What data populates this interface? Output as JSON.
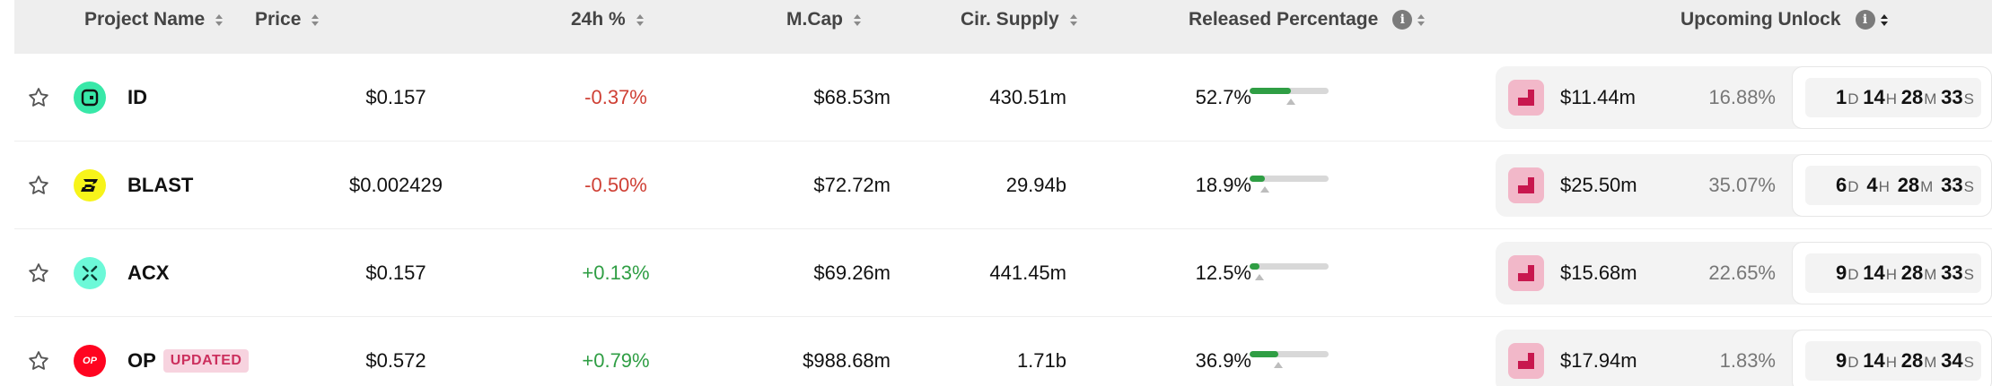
{
  "columns": [
    {
      "label": "Project Name",
      "sort_active": false,
      "info": false
    },
    {
      "label": "Price",
      "sort_active": false,
      "info": false
    },
    {
      "label": "24h %",
      "sort_active": false,
      "info": false
    },
    {
      "label": "M.Cap",
      "sort_active": false,
      "info": false
    },
    {
      "label": "Cir. Supply",
      "sort_active": false,
      "info": false
    },
    {
      "label": "Released Percentage",
      "sort_active": false,
      "info": true
    },
    {
      "label": "Upcoming Unlock",
      "sort_active": true,
      "info": true
    }
  ],
  "info_glyph": "i",
  "colors": {
    "negative": "#cf4035",
    "positive": "#2f9e44",
    "progress": "#2f9e44",
    "badge_text": "#cc2f5d",
    "badge_bg": "#f7d3df",
    "unlock_icon": "#c8174e"
  },
  "rows": [
    {
      "name": "ID",
      "badge": "",
      "logo_icon": "space-id-icon",
      "logo_bg": "#38e8a8",
      "price": "$0.157",
      "change": "-0.37%",
      "change_dir": "neg",
      "mcap": "$68.53m",
      "supply": "430.51m",
      "released_pct": "52.7%",
      "released_value": 0.527,
      "unlock_value": "$11.44m",
      "unlock_pct": "16.88%",
      "timer": [
        {
          "n": "1",
          "u": "D"
        },
        {
          "n": "14",
          "u": "H"
        },
        {
          "n": "28",
          "u": "M"
        },
        {
          "n": "33",
          "u": "S"
        }
      ]
    },
    {
      "name": "BLAST",
      "badge": "",
      "logo_icon": "blast-icon",
      "logo_bg": "#f7f41a",
      "price": "$0.002429",
      "change": "-0.50%",
      "change_dir": "neg",
      "mcap": "$72.72m",
      "supply": "29.94b",
      "released_pct": "18.9%",
      "released_value": 0.189,
      "unlock_value": "$25.50m",
      "unlock_pct": "35.07%",
      "timer": [
        {
          "n": "6",
          "u": "D"
        },
        {
          "n": "4",
          "u": "H"
        },
        {
          "n": "28",
          "u": "M"
        },
        {
          "n": "33",
          "u": "S"
        }
      ]
    },
    {
      "name": "ACX",
      "badge": "",
      "logo_icon": "across-icon",
      "logo_bg": "#6cf9d8",
      "price": "$0.157",
      "change": "+0.13%",
      "change_dir": "pos",
      "mcap": "$69.26m",
      "supply": "441.45m",
      "released_pct": "12.5%",
      "released_value": 0.125,
      "unlock_value": "$15.68m",
      "unlock_pct": "22.65%",
      "timer": [
        {
          "n": "9",
          "u": "D"
        },
        {
          "n": "14",
          "u": "H"
        },
        {
          "n": "28",
          "u": "M"
        },
        {
          "n": "33",
          "u": "S"
        }
      ]
    },
    {
      "name": "OP",
      "badge": "UPDATED",
      "logo_icon": "optimism-icon",
      "logo_bg": "#ff0420",
      "logo_text": "OP",
      "price": "$0.572",
      "change": "+0.79%",
      "change_dir": "pos",
      "mcap": "$988.68m",
      "supply": "1.71b",
      "released_pct": "36.9%",
      "released_value": 0.369,
      "unlock_value": "$17.94m",
      "unlock_pct": "1.83%",
      "timer": [
        {
          "n": "9",
          "u": "D"
        },
        {
          "n": "14",
          "u": "H"
        },
        {
          "n": "28",
          "u": "M"
        },
        {
          "n": "34",
          "u": "S"
        }
      ]
    }
  ]
}
